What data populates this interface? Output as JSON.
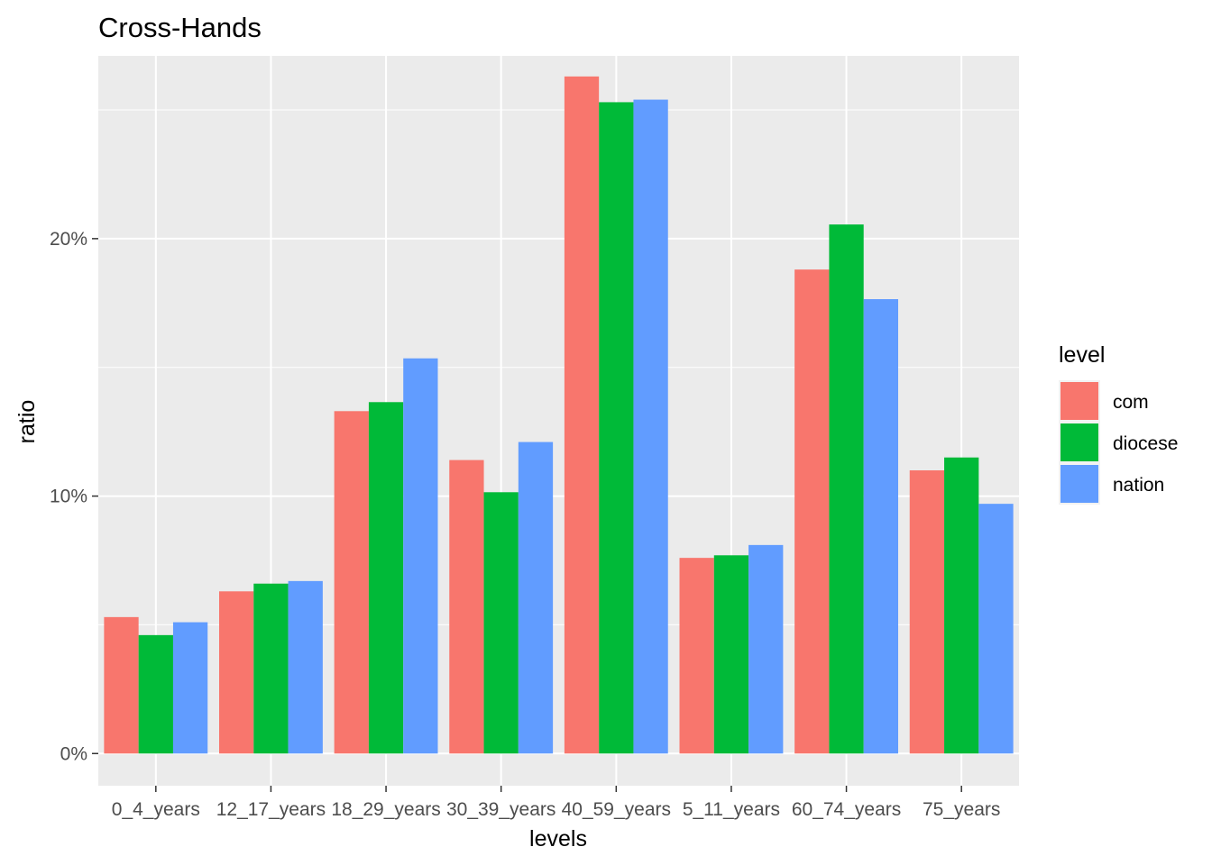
{
  "chart_data": {
    "type": "bar",
    "title": "Cross-Hands",
    "xlabel": "levels",
    "ylabel": "ratio",
    "categories": [
      "0_4_years",
      "12_17_years",
      "18_29_years",
      "30_39_years",
      "40_59_years",
      "5_11_years",
      "60_74_years",
      "75_years"
    ],
    "series": [
      {
        "name": "com",
        "color": "#F8766D",
        "values": [
          5.3,
          6.3,
          13.3,
          11.4,
          26.3,
          7.6,
          18.8,
          11.0
        ]
      },
      {
        "name": "diocese",
        "color": "#00BA38",
        "values": [
          4.6,
          6.6,
          13.65,
          10.15,
          25.3,
          7.7,
          20.55,
          11.5
        ]
      },
      {
        "name": "nation",
        "color": "#619CFF",
        "values": [
          5.1,
          6.7,
          15.35,
          12.1,
          25.4,
          8.1,
          17.65,
          9.7
        ]
      }
    ],
    "ylim": [
      -1.25,
      27.1
    ],
    "yticks": [
      0,
      10,
      20
    ],
    "ytick_labels": [
      "0%",
      "10%",
      "20%"
    ],
    "grid": true,
    "legend": {
      "title": "level",
      "position": "right"
    }
  }
}
